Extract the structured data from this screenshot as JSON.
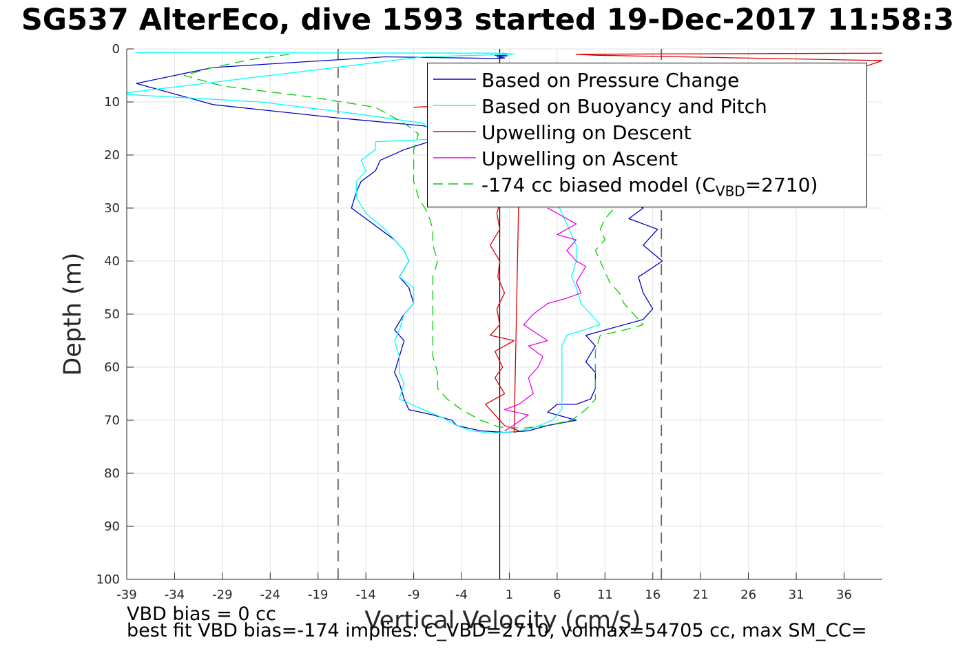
{
  "title": "SG537 AlterEco, dive 1593 started 19-Dec-2017 11:58:3",
  "footer": {
    "line1": "VBD bias = 0 cc",
    "line2": "best fit VBD bias=-174 implies: C_VBD=2710, volmax=54705 cc, max SM_CC="
  },
  "legend": [
    {
      "label": "Based on Pressure Change",
      "color": "#0000c8",
      "style": "solid"
    },
    {
      "label": "Based on Buoyancy and Pitch",
      "color": "#00ffff",
      "style": "solid"
    },
    {
      "label": "Upwelling on Descent",
      "color": "#dd0000",
      "style": "solid"
    },
    {
      "label": "Upwelling on Ascent",
      "color": "#ee00ee",
      "style": "solid"
    },
    {
      "label_prefix": "-174 cc biased model (C",
      "label_sub": "VBD",
      "label_suffix": "=2710)",
      "color": "#00cc00",
      "style": "dashed"
    }
  ],
  "chart_data": {
    "type": "line",
    "title": "SG537 AlterEco, dive 1593 started 19-Dec-2017 11:58:3",
    "xlabel": "Vertical Velocity (cm/s)",
    "ylabel": "Depth (m)",
    "xlim": [
      -39,
      40
    ],
    "ylim": [
      0,
      100
    ],
    "y_reversed": true,
    "xticks": [
      -39,
      -34,
      -29,
      -24,
      -19,
      -14,
      -9,
      -4,
      1,
      6,
      11,
      16,
      21,
      26,
      31,
      36
    ],
    "yticks": [
      0,
      10,
      20,
      30,
      40,
      50,
      60,
      70,
      80,
      90,
      100
    ],
    "grid": true,
    "legend_position": "top-right",
    "reference_lines": [
      {
        "orientation": "vertical",
        "x": -16.9,
        "style": "dashed",
        "color": "#666666"
      },
      {
        "orientation": "vertical",
        "x": 16.9,
        "style": "dashed",
        "color": "#666666"
      },
      {
        "orientation": "vertical",
        "x": 0,
        "style": "solid",
        "color": "#000000"
      }
    ],
    "series": [
      {
        "name": "Based on Pressure Change",
        "color": "#0000c8",
        "dash": false,
        "points": [
          [
            0.3,
            0.8
          ],
          [
            1.0,
            1.0
          ],
          [
            -0.5,
            1.2
          ],
          [
            0.8,
            1.3
          ],
          [
            -0.3,
            1.5
          ],
          [
            0.5,
            1.7
          ],
          [
            -0.2,
            1.8
          ],
          [
            -12,
            1.5
          ],
          [
            -30,
            3.5
          ],
          [
            -38,
            6.5
          ],
          [
            -30,
            10.5
          ],
          [
            -17,
            13
          ],
          [
            -8,
            14.5
          ],
          [
            -6,
            15.5
          ],
          [
            -6.5,
            17
          ],
          [
            -10,
            19
          ],
          [
            -12.5,
            21
          ],
          [
            -13,
            23
          ],
          [
            -14.5,
            25
          ],
          [
            -15,
            27
          ],
          [
            -15.5,
            30
          ],
          [
            -14,
            32
          ],
          [
            -12.5,
            34
          ],
          [
            -11,
            36
          ],
          [
            -10,
            38
          ],
          [
            -9.5,
            40
          ],
          [
            -10.5,
            43
          ],
          [
            -9.5,
            45
          ],
          [
            -9,
            48
          ],
          [
            -10,
            50
          ],
          [
            -11,
            53
          ],
          [
            -10,
            55
          ],
          [
            -10.5,
            58
          ],
          [
            -11,
            61
          ],
          [
            -10.5,
            63
          ],
          [
            -10,
            66
          ],
          [
            -9.5,
            68
          ],
          [
            -7,
            69
          ],
          [
            -5,
            70
          ],
          [
            -4.5,
            71
          ],
          [
            -2,
            72
          ],
          [
            0.5,
            72.3
          ],
          [
            3,
            72
          ],
          [
            5,
            71
          ],
          [
            8,
            70
          ],
          [
            6,
            69
          ],
          [
            5,
            68.5
          ],
          [
            6,
            67
          ],
          [
            8,
            67
          ],
          [
            9.5,
            66
          ],
          [
            10,
            64
          ],
          [
            10,
            61
          ],
          [
            9,
            59
          ],
          [
            10,
            56
          ],
          [
            9,
            54
          ],
          [
            11,
            53
          ],
          [
            15,
            51
          ],
          [
            16,
            49
          ],
          [
            15,
            46
          ],
          [
            14.5,
            43
          ],
          [
            17,
            40
          ],
          [
            15,
            37
          ],
          [
            16.5,
            34
          ],
          [
            13.5,
            32
          ],
          [
            15,
            30
          ],
          [
            13,
            28
          ]
        ]
      },
      {
        "name": "Based on Buoyancy and Pitch",
        "color": "#00ffff",
        "dash": false,
        "points": [
          [
            -38,
            0.7
          ],
          [
            0,
            0.8
          ],
          [
            1.5,
            1.0
          ],
          [
            -8,
            1.5
          ],
          [
            -40,
            8.5
          ],
          [
            -25,
            10
          ],
          [
            -16,
            12
          ],
          [
            -8,
            14
          ],
          [
            -7,
            16
          ],
          [
            -6.5,
            17
          ],
          [
            -13,
            17.5
          ],
          [
            -13,
            19
          ],
          [
            -14.5,
            21
          ],
          [
            -14,
            23
          ],
          [
            -15,
            25
          ],
          [
            -15,
            28
          ],
          [
            -14,
            31
          ],
          [
            -12,
            34
          ],
          [
            -11,
            36
          ],
          [
            -10,
            38
          ],
          [
            -9.5,
            40
          ],
          [
            -10.5,
            43
          ],
          [
            -9,
            45
          ],
          [
            -9,
            48
          ],
          [
            -10,
            50
          ],
          [
            -10.5,
            53
          ],
          [
            -11,
            55
          ],
          [
            -10.5,
            58
          ],
          [
            -10.5,
            61
          ],
          [
            -10,
            63
          ],
          [
            -10.5,
            66
          ],
          [
            -8,
            68
          ],
          [
            -6,
            69.5
          ],
          [
            -4.5,
            71
          ],
          [
            -3,
            72
          ],
          [
            -1,
            72.4
          ],
          [
            1.5,
            72.2
          ],
          [
            3.5,
            71.5
          ],
          [
            5.5,
            70
          ],
          [
            6.5,
            68
          ],
          [
            6.5,
            65
          ],
          [
            6.5,
            62
          ],
          [
            6.5,
            59
          ],
          [
            6.5,
            56
          ],
          [
            7,
            54
          ],
          [
            10.5,
            52
          ],
          [
            9.5,
            50
          ],
          [
            8.5,
            48
          ],
          [
            8,
            45
          ],
          [
            7.5,
            43
          ],
          [
            8,
            40
          ],
          [
            8,
            37
          ],
          [
            7.5,
            35
          ],
          [
            7,
            33
          ],
          [
            6.5,
            31
          ],
          [
            6,
            29
          ]
        ]
      },
      {
        "name": "Upwelling on Descent",
        "color": "#dd0000",
        "dash": false,
        "points": [
          [
            40,
            0.8
          ],
          [
            9,
            1.0
          ],
          [
            8,
            1.0
          ],
          [
            10,
            1.2
          ],
          [
            40,
            2.2
          ],
          [
            0.3,
            27
          ],
          [
            -0.3,
            31
          ],
          [
            0,
            34
          ],
          [
            -1,
            37
          ],
          [
            0,
            40
          ],
          [
            -0.2,
            43
          ],
          [
            0.5,
            46
          ],
          [
            -0.3,
            49
          ],
          [
            0,
            52
          ],
          [
            -1,
            54
          ],
          [
            1.5,
            55
          ],
          [
            -0.5,
            57
          ],
          [
            0.3,
            60
          ],
          [
            -0.5,
            62
          ],
          [
            0.5,
            65
          ],
          [
            -1.5,
            67
          ],
          [
            -0.5,
            69
          ],
          [
            0.5,
            71
          ],
          [
            2,
            72
          ],
          [
            1.5,
            72.3
          ],
          [
            2,
            27
          ],
          [
            2.5,
            10
          ],
          [
            -9,
            11
          ]
        ]
      },
      {
        "name": "Upwelling on Ascent",
        "color": "#ee00ee",
        "dash": false,
        "points": [
          [
            0.5,
            72
          ],
          [
            1,
            71.5
          ],
          [
            3,
            69
          ],
          [
            0.5,
            68
          ],
          [
            2,
            67
          ],
          [
            3.5,
            65
          ],
          [
            3,
            62
          ],
          [
            4,
            60
          ],
          [
            4.5,
            58
          ],
          [
            3,
            56
          ],
          [
            5,
            55
          ],
          [
            2.5,
            52
          ],
          [
            3.5,
            50
          ],
          [
            5,
            48
          ],
          [
            7,
            47
          ],
          [
            8.5,
            46
          ],
          [
            8,
            44
          ],
          [
            9,
            41
          ],
          [
            8,
            40
          ],
          [
            7,
            38
          ],
          [
            8,
            36
          ],
          [
            6,
            35
          ],
          [
            8,
            33
          ],
          [
            7,
            32
          ],
          [
            6,
            31
          ],
          [
            5,
            30
          ]
        ]
      },
      {
        "name": "-174 cc biased model (CVBD=2710)",
        "color": "#00cc00",
        "dash": true,
        "points": [
          [
            -22,
            1.0
          ],
          [
            -26,
            2.0
          ],
          [
            -30,
            3.5
          ],
          [
            -33,
            5
          ],
          [
            -29,
            7
          ],
          [
            -20,
            9
          ],
          [
            -13,
            11
          ],
          [
            -10,
            14
          ],
          [
            -8.5,
            16
          ],
          [
            -9,
            19
          ],
          [
            -9,
            22
          ],
          [
            -9,
            25
          ],
          [
            -8.5,
            28
          ],
          [
            -7.5,
            31
          ],
          [
            -7,
            34
          ],
          [
            -7,
            37
          ],
          [
            -6.5,
            40
          ],
          [
            -7,
            43
          ],
          [
            -7,
            46
          ],
          [
            -7,
            49
          ],
          [
            -7,
            52
          ],
          [
            -7,
            55
          ],
          [
            -7,
            58
          ],
          [
            -6.5,
            61
          ],
          [
            -6.5,
            64
          ],
          [
            -5.5,
            66
          ],
          [
            -4,
            68
          ],
          [
            -2,
            70
          ],
          [
            0,
            71.3
          ],
          [
            2.5,
            71.5
          ],
          [
            5,
            71
          ],
          [
            7.5,
            70
          ],
          [
            9,
            68
          ],
          [
            10,
            66
          ],
          [
            10,
            63
          ],
          [
            10,
            60
          ],
          [
            10,
            57
          ],
          [
            10.5,
            54
          ],
          [
            13,
            53
          ],
          [
            15,
            52
          ],
          [
            14,
            50
          ],
          [
            13,
            48
          ],
          [
            12.5,
            46
          ],
          [
            11.5,
            44
          ],
          [
            11,
            42
          ],
          [
            10.5,
            40
          ],
          [
            10,
            38
          ],
          [
            11,
            36
          ],
          [
            10.5,
            34
          ],
          [
            11,
            32
          ],
          [
            12,
            30
          ]
        ]
      }
    ]
  }
}
